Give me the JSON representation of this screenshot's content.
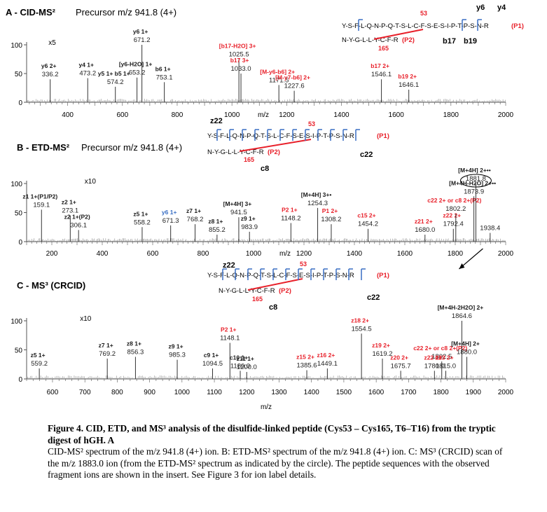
{
  "colors": {
    "red": "#e8202a",
    "blue": "#3a6fc4",
    "black": "#1a1a1a",
    "axis": "#555555"
  },
  "figure": {
    "caption_bold": "Figure 4. CID, ETD, and MS³ analysis of the disulfide-linked peptide (Cys53 – Cys165, T6–T16) from the tryptic digest of hGH. A",
    "caption_rest": "CID-MS² spectrum of the m/z 941.8 (4+) ion. B: ETD-MS² spectrum of the m/z 941.8 (4+) ion. C: MS³ (CRCID) scan of the m/z 1883.0 ion (from the ETD-MS² spectrum as indicated by the circle). The peptide sequences with the observed fragment ions are shown in the insert. See Figure 3 for ion label details."
  },
  "seq": {
    "top": "Y-S-F-L-Q-N-P-Q-T-S-L-C-F-S-E-S-I-P-T-P-S-N-R",
    "top_tag": "(P1)",
    "bottom": "N-Y-G-L-L-Y-C-F-R",
    "bottom_tag": "(P2)",
    "top_c": "53",
    "bottom_c": "165"
  },
  "chart_data": [
    {
      "type": "bar",
      "panel": "A",
      "title": "A - CID-MS²",
      "precursor": "Precursor m/z 941.8 (4+)",
      "xlabel": "m/z",
      "xlim": [
        250,
        2000
      ],
      "ylim": [
        0,
        100
      ],
      "x_ticks": [
        400,
        600,
        800,
        1000,
        1200,
        1400,
        1600,
        1800,
        2000
      ],
      "y_ticks": [
        0,
        50,
        100
      ],
      "magnification": "x5",
      "seq_labels": [
        "y6",
        "y4",
        "b17",
        "b19"
      ],
      "peaks": [
        {
          "mz": 336.2,
          "rel": 40,
          "label": "y6 2+",
          "color": "black"
        },
        {
          "mz": 473.2,
          "rel": 42,
          "label": "y4 1+",
          "color": "black"
        },
        {
          "mz": 574.2,
          "rel": 27,
          "label": "y5 1+   b5 1+",
          "color": "black"
        },
        {
          "mz": 653.2,
          "rel": 43,
          "label": "[y6-H2O] 1+",
          "color": "black"
        },
        {
          "mz": 671.2,
          "rel": 100,
          "label": "y6 1+",
          "color": "black"
        },
        {
          "mz": 753.1,
          "rel": 35,
          "label": "b6 1+",
          "color": "black"
        },
        {
          "mz": 1025.5,
          "rel": 75,
          "label": "[b17-H2O] 3+",
          "color": "red"
        },
        {
          "mz": 1033.0,
          "rel": 50,
          "label": "b17 3+",
          "color": "red"
        },
        {
          "mz": 1171.5,
          "rel": 30,
          "label": "[M-y6-b6] 2+",
          "color": "red"
        },
        {
          "mz": 1227.6,
          "rel": 20,
          "label": "[M-y7-b6] 2+",
          "color": "red"
        },
        {
          "mz": 1546.1,
          "rel": 40,
          "label": "b17 2+",
          "color": "red"
        },
        {
          "mz": 1646.1,
          "rel": 22,
          "label": "b19 2+",
          "color": "red"
        }
      ]
    },
    {
      "type": "bar",
      "panel": "B",
      "title": "B - ETD-MS²",
      "precursor": "Precursor m/z 941.8 (4+)",
      "xlabel": "m/z",
      "xlim": [
        100,
        2000
      ],
      "ylim": [
        0,
        100
      ],
      "x_ticks": [
        200,
        400,
        600,
        800,
        1000,
        1200,
        1400,
        1600,
        1800,
        2000
      ],
      "y_ticks": [
        0,
        50,
        100
      ],
      "magnification": "x10",
      "seq_labels": [
        "z22",
        "53",
        "165",
        "c8",
        "c22"
      ],
      "peaks": [
        {
          "mz": 159.1,
          "rel": 55,
          "label": "z1 1+(P1/P2)",
          "color": "black"
        },
        {
          "mz": 273.1,
          "rel": 45,
          "label": "z2 1+",
          "color": "black"
        },
        {
          "mz": 306.1,
          "rel": 20,
          "label": "z2 1+(P2)",
          "color": "black"
        },
        {
          "mz": 558.2,
          "rel": 25,
          "label": "z5 1+",
          "color": "black"
        },
        {
          "mz": 671.3,
          "rel": 28,
          "label": "y6 1+",
          "color": "blue"
        },
        {
          "mz": 768.2,
          "rel": 30,
          "label": "z7 1+",
          "color": "black"
        },
        {
          "mz": 855.2,
          "rel": 12,
          "label": "z8 1+",
          "color": "black"
        },
        {
          "mz": 941.5,
          "rel": 42,
          "label": "[M+4H] 3+",
          "color": "black"
        },
        {
          "mz": 983.9,
          "rel": 17,
          "label": "z9 1+",
          "color": "black"
        },
        {
          "mz": 1148.2,
          "rel": 32,
          "label": "P2 1+",
          "color": "red"
        },
        {
          "mz": 1254.3,
          "rel": 58,
          "label": "[M+4H] 3+•",
          "color": "black"
        },
        {
          "mz": 1308.2,
          "rel": 30,
          "label": "P1 2+",
          "color": "red"
        },
        {
          "mz": 1454.2,
          "rel": 22,
          "label": "c15 2+",
          "color": "red"
        },
        {
          "mz": 1680.0,
          "rel": 12,
          "label": "z21 2+",
          "color": "red"
        },
        {
          "mz": 1792.4,
          "rel": 22,
          "label": "z22 2+",
          "color": "red"
        },
        {
          "mz": 1802.2,
          "rel": 48,
          "label": "c22 2+ or c8 2+(P2)",
          "color": "red"
        },
        {
          "mz": 1873.9,
          "rel": 78,
          "label": "[M+4H-H2O] 2+••",
          "color": "black"
        },
        {
          "mz": 1881.8,
          "rel": 100,
          "label": "[M+4H] 2+••",
          "color": "black"
        },
        {
          "mz": 1938.4,
          "rel": 15,
          "label": "",
          "color": "black"
        }
      ]
    },
    {
      "type": "bar",
      "panel": "C",
      "title": "C - MS³ (CRCID)",
      "xlabel": "m/z",
      "xlim": [
        520,
        2000
      ],
      "ylim": [
        0,
        100
      ],
      "x_ticks": [
        600,
        700,
        800,
        900,
        1000,
        1100,
        1200,
        1300,
        1400,
        1500,
        1600,
        1700,
        1800,
        1900,
        2000
      ],
      "y_ticks": [
        0,
        50,
        100
      ],
      "magnification": "x10",
      "seq_labels": [
        "z22",
        "53",
        "165",
        "c8",
        "c22"
      ],
      "peaks": [
        {
          "mz": 559.2,
          "rel": 18,
          "label": "z5 1+",
          "color": "black"
        },
        {
          "mz": 769.2,
          "rel": 35,
          "label": "z7 1+",
          "color": "black"
        },
        {
          "mz": 856.3,
          "rel": 38,
          "label": "z8 1+",
          "color": "black"
        },
        {
          "mz": 985.3,
          "rel": 33,
          "label": "z9 1+",
          "color": "black"
        },
        {
          "mz": 1094.5,
          "rel": 18,
          "label": "c9 1+",
          "color": "black"
        },
        {
          "mz": 1148.1,
          "rel": 62,
          "label": "P2 1+",
          "color": "red"
        },
        {
          "mz": 1180.0,
          "rel": 14,
          "label": "c10 1+",
          "color": "black"
        },
        {
          "mz": 1200.0,
          "rel": 12,
          "label": "z11 1+",
          "color": "black"
        },
        {
          "mz": 1385.6,
          "rel": 15,
          "label": "z15 2+",
          "color": "red"
        },
        {
          "mz": 1449.1,
          "rel": 18,
          "label": "z16 2+",
          "color": "red"
        },
        {
          "mz": 1554.5,
          "rel": 78,
          "label": "z18 2+",
          "color": "red"
        },
        {
          "mz": 1619.2,
          "rel": 35,
          "label": "z19 2+",
          "color": "red"
        },
        {
          "mz": 1675.7,
          "rel": 14,
          "label": "z20 2+",
          "color": "red"
        },
        {
          "mz": 1802.5,
          "rel": 30,
          "label": "c22 2+ or c8 2+(P2)",
          "color": "red"
        },
        {
          "mz": 1780.0,
          "rel": 14,
          "label": "z22 2+",
          "color": "red"
        },
        {
          "mz": 1815.0,
          "rel": 14,
          "label": "c23 2+",
          "color": "red"
        },
        {
          "mz": 1864.6,
          "rel": 100,
          "label": "[M+4H-2H2O] 2+",
          "color": "black"
        },
        {
          "mz": 1880.0,
          "rel": 38,
          "label": "[M+4H] 2+",
          "color": "black"
        }
      ]
    }
  ]
}
